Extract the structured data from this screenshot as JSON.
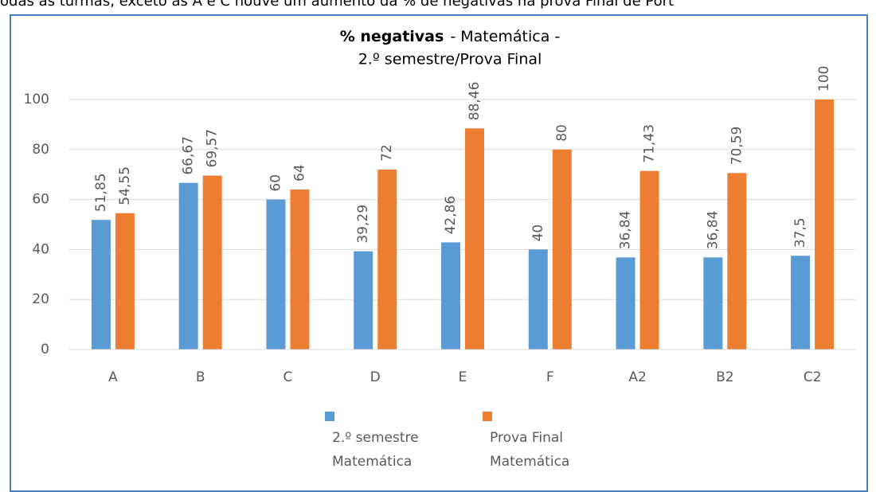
{
  "caption": "odas as turmas, exceto as A e C houve um aumento da % de negativas na prova Final de Port",
  "chart_data": {
    "type": "bar",
    "title": [
      "% negativas",
      "- Matemática -",
      "2.º semestre/Prova Final"
    ],
    "categories": [
      "A",
      "B",
      "C",
      "D",
      "E",
      "F",
      "A2",
      "B2",
      "C2"
    ],
    "series": [
      {
        "name": "2.º semestre Matemática",
        "color": "#5b9bd5",
        "values": [
          51.85,
          66.67,
          60,
          39.29,
          42.86,
          40,
          36.84,
          36.84,
          37.5
        ],
        "value_labels": [
          "51,85",
          "66,67",
          "60",
          "39,29",
          "42,86",
          "40",
          "36,84",
          "36,84",
          "37,5"
        ]
      },
      {
        "name": "Prova Final Matemática",
        "color": "#ed7d31",
        "values": [
          54.55,
          69.57,
          64,
          72,
          88.46,
          80,
          71.43,
          70.59,
          100
        ],
        "value_labels": [
          "54,55",
          "69,57",
          "64",
          "72",
          "88,46",
          "80",
          "71,43",
          "70,59",
          "100"
        ]
      }
    ],
    "ylim": [
      0,
      100
    ],
    "yticks": [
      0,
      20,
      40,
      60,
      80,
      100
    ],
    "grid": true,
    "legend": "bottom"
  }
}
